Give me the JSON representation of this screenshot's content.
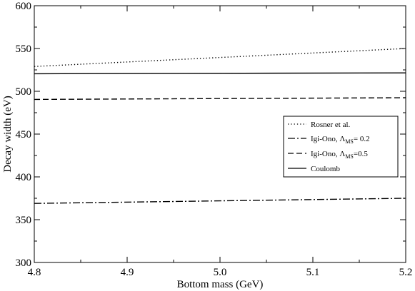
{
  "chart_data": {
    "type": "line",
    "xlabel": "Bottom mass (GeV)",
    "ylabel": "Decay width (eV)",
    "xlim": [
      4.8,
      5.2
    ],
    "ylim": [
      300,
      600
    ],
    "xticks": [
      4.8,
      4.9,
      5.0,
      5.1,
      5.2
    ],
    "xtick_labels": [
      "4.8",
      "4.9",
      "5.0",
      "5.1",
      "5.2"
    ],
    "yticks": [
      300,
      350,
      400,
      450,
      500,
      550,
      600
    ],
    "ytick_labels": [
      "300",
      "350",
      "400",
      "450",
      "500",
      "550",
      "600"
    ],
    "grid": false,
    "legend_position": "right",
    "series": [
      {
        "name": "Rosner et al.",
        "style": "dotted",
        "color": "#000000",
        "x": [
          4.8,
          5.2
        ],
        "y": [
          529,
          550
        ]
      },
      {
        "name_parts": [
          "Igi-Ono, Λ",
          "MS",
          "= 0.2"
        ],
        "style": "dashdot",
        "color": "#000000",
        "x": [
          4.8,
          5.2
        ],
        "y": [
          369,
          375
        ]
      },
      {
        "name_parts": [
          "Igi-Ono, Λ",
          "MS",
          "=0.5"
        ],
        "style": "dashed",
        "color": "#000000",
        "x": [
          4.8,
          5.2
        ],
        "y": [
          490.5,
          492.5
        ]
      },
      {
        "name": "Coulomb",
        "style": "solid",
        "color": "#000000",
        "x": [
          4.8,
          5.2
        ],
        "y": [
          520.5,
          521.5
        ]
      }
    ]
  }
}
